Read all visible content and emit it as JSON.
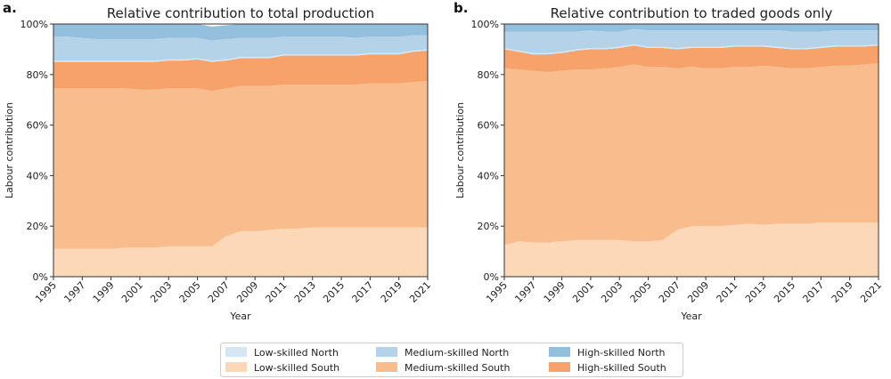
{
  "colors": {
    "low_north": "#d6e6f3",
    "medium_north": "#b5d3e8",
    "high_north": "#94c0de",
    "low_south": "#fcd7b8",
    "medium_south": "#f9bd8d",
    "high_south": "#f7a26a"
  },
  "chart_data": [
    {
      "type": "area",
      "panel_label": "a.",
      "title": "Relative contribution to total production",
      "xlabel": "Year",
      "ylabel": "Labour contribution",
      "ylim": [
        0,
        100
      ],
      "yticks": [
        "0%",
        "20%",
        "40%",
        "60%",
        "80%",
        "100%"
      ],
      "xticks": [
        "1995",
        "1997",
        "1999",
        "2001",
        "2003",
        "2005",
        "2007",
        "2009",
        "2011",
        "2013",
        "2015",
        "2017",
        "2019",
        "2021"
      ],
      "x": [
        1995,
        1996,
        1997,
        1998,
        1999,
        2000,
        2001,
        2002,
        2003,
        2004,
        2005,
        2006,
        2007,
        2008,
        2009,
        2010,
        2011,
        2012,
        2013,
        2014,
        2015,
        2016,
        2017,
        2018,
        2019,
        2020,
        2021
      ],
      "stacked": true,
      "series": [
        {
          "name": "Low-skilled South",
          "color_key": "low_south",
          "values": [
            11,
            11,
            11,
            11,
            11,
            11.5,
            11.5,
            11.5,
            12,
            12,
            12,
            12,
            16,
            18,
            18,
            18.5,
            19,
            19,
            19.5,
            19.5,
            19.5,
            19.5,
            19.5,
            19.5,
            19.5,
            19.5,
            19.5
          ]
        },
        {
          "name": "Medium-skilled South",
          "color_key": "medium_south",
          "values": [
            63.5,
            63.5,
            63.5,
            63.5,
            63.5,
            63,
            62.5,
            62.5,
            62.5,
            62.5,
            62.5,
            61.5,
            58.5,
            57.5,
            57.5,
            57,
            57,
            57,
            56.5,
            56.5,
            56.5,
            56.5,
            57,
            57,
            57,
            57.5,
            58
          ]
        },
        {
          "name": "High-skilled South",
          "color_key": "high_south",
          "values": [
            10.5,
            10.5,
            10.5,
            10.5,
            10.5,
            10.5,
            11,
            11,
            11,
            11,
            11.5,
            11.5,
            11,
            11,
            11,
            11,
            11.5,
            11.5,
            11.5,
            11.5,
            11.5,
            11.5,
            11.5,
            11.5,
            11.5,
            12,
            12
          ]
        },
        {
          "name": "Low-skilled North",
          "color_key": "low_north",
          "values": [
            0.5,
            0.5,
            0.5,
            0.5,
            0.5,
            0.5,
            0.5,
            0.5,
            0.5,
            0.5,
            0.5,
            0.5,
            0.5,
            0.5,
            0.5,
            0.5,
            0.5,
            0.5,
            0.5,
            0.5,
            0.5,
            0.5,
            0.5,
            0.5,
            0.5,
            0.5,
            0.5
          ]
        },
        {
          "name": "Medium-skilled North",
          "color_key": "medium_north",
          "values": [
            9.5,
            9.5,
            9,
            8.5,
            8.5,
            8.5,
            8.5,
            8.5,
            8.5,
            8.5,
            8,
            8,
            8,
            7.5,
            7.5,
            7.5,
            7,
            7,
            7,
            7,
            7,
            6.5,
            6.5,
            6.5,
            6.5,
            6,
            5.5
          ]
        },
        {
          "name": "High-skilled North",
          "color_key": "high_north",
          "values": [
            5,
            5,
            5.5,
            6,
            6,
            6,
            6,
            6,
            5.5,
            5.5,
            5.5,
            5.5,
            5.5,
            5.5,
            5.5,
            5.5,
            5,
            5,
            5,
            5,
            5,
            5.5,
            5,
            5,
            5,
            4.5,
            4.5
          ]
        }
      ]
    },
    {
      "type": "area",
      "panel_label": "b.",
      "title": "Relative contribution to traded goods only",
      "xlabel": "Year",
      "ylabel": "Labour contribution",
      "ylim": [
        0,
        100
      ],
      "yticks": [
        "0%",
        "20%",
        "40%",
        "60%",
        "80%",
        "100%"
      ],
      "xticks": [
        "1995",
        "1997",
        "1999",
        "2001",
        "2003",
        "2005",
        "2007",
        "2009",
        "2011",
        "2013",
        "2015",
        "2017",
        "2019",
        "2021"
      ],
      "x": [
        1995,
        1996,
        1997,
        1998,
        1999,
        2000,
        2001,
        2002,
        2003,
        2004,
        2005,
        2006,
        2007,
        2008,
        2009,
        2010,
        2011,
        2012,
        2013,
        2014,
        2015,
        2016,
        2017,
        2018,
        2019,
        2020,
        2021
      ],
      "stacked": true,
      "series": [
        {
          "name": "Low-skilled South",
          "color_key": "low_south",
          "values": [
            12.5,
            14,
            13.5,
            13.5,
            14,
            14.5,
            14.5,
            14.5,
            14.5,
            14,
            14,
            14.5,
            18.5,
            20,
            20,
            20,
            20.5,
            21,
            20.5,
            21,
            21,
            21,
            21.5,
            21.5,
            21.5,
            21.5,
            21.5
          ]
        },
        {
          "name": "Medium-skilled South",
          "color_key": "medium_south",
          "values": [
            70,
            68,
            68,
            67.5,
            67.5,
            67.5,
            67.5,
            68,
            68.5,
            70,
            69,
            68.5,
            64,
            63,
            62.5,
            62.5,
            62.5,
            62,
            63,
            62,
            61.5,
            61.5,
            61.5,
            62,
            62,
            62.5,
            63
          ]
        },
        {
          "name": "High-skilled South",
          "color_key": "high_south",
          "values": [
            7.5,
            7,
            6.5,
            7,
            7,
            7.5,
            8,
            7.5,
            7.5,
            7.5,
            7.5,
            7.5,
            7.5,
            7.5,
            8,
            8,
            8,
            8,
            7.5,
            7.5,
            7.5,
            7.5,
            7.5,
            7.5,
            7.5,
            7,
            7
          ]
        },
        {
          "name": "Low-skilled North",
          "color_key": "low_north",
          "values": [
            0.5,
            0.5,
            0.5,
            0.5,
            0.5,
            0.5,
            0.5,
            0.5,
            0.5,
            0.5,
            0.5,
            0.5,
            0.5,
            0.5,
            0.5,
            0.5,
            0.5,
            0.5,
            0.5,
            0.5,
            0.5,
            0.5,
            0.5,
            0.5,
            0.5,
            0.5,
            0.5
          ]
        },
        {
          "name": "Medium-skilled North",
          "color_key": "medium_north",
          "values": [
            6.5,
            7.5,
            8.5,
            8.5,
            8,
            7,
            7,
            6.5,
            6,
            6,
            6.5,
            6.5,
            7,
            6.5,
            6.5,
            6.5,
            6,
            6,
            6,
            6.5,
            6.5,
            6.5,
            6,
            6,
            6,
            6,
            5.5
          ]
        },
        {
          "name": "High-skilled North",
          "color_key": "high_north",
          "values": [
            3,
            3,
            3,
            3,
            3,
            3,
            2.5,
            3,
            3,
            2,
            2.5,
            2.5,
            2.5,
            2.5,
            2.5,
            2.5,
            2.5,
            2.5,
            2.5,
            2.5,
            3,
            3,
            3,
            2.5,
            2.5,
            2.5,
            2.5
          ]
        }
      ]
    }
  ],
  "legend": [
    {
      "label": "Low-skilled North",
      "color_key": "low_north"
    },
    {
      "label": "Low-skilled South",
      "color_key": "low_south"
    },
    {
      "label": "Medium-skilled North",
      "color_key": "medium_north"
    },
    {
      "label": "Medium-skilled South",
      "color_key": "medium_south"
    },
    {
      "label": "High-skilled North",
      "color_key": "high_north"
    },
    {
      "label": "High-skilled South",
      "color_key": "high_south"
    }
  ]
}
